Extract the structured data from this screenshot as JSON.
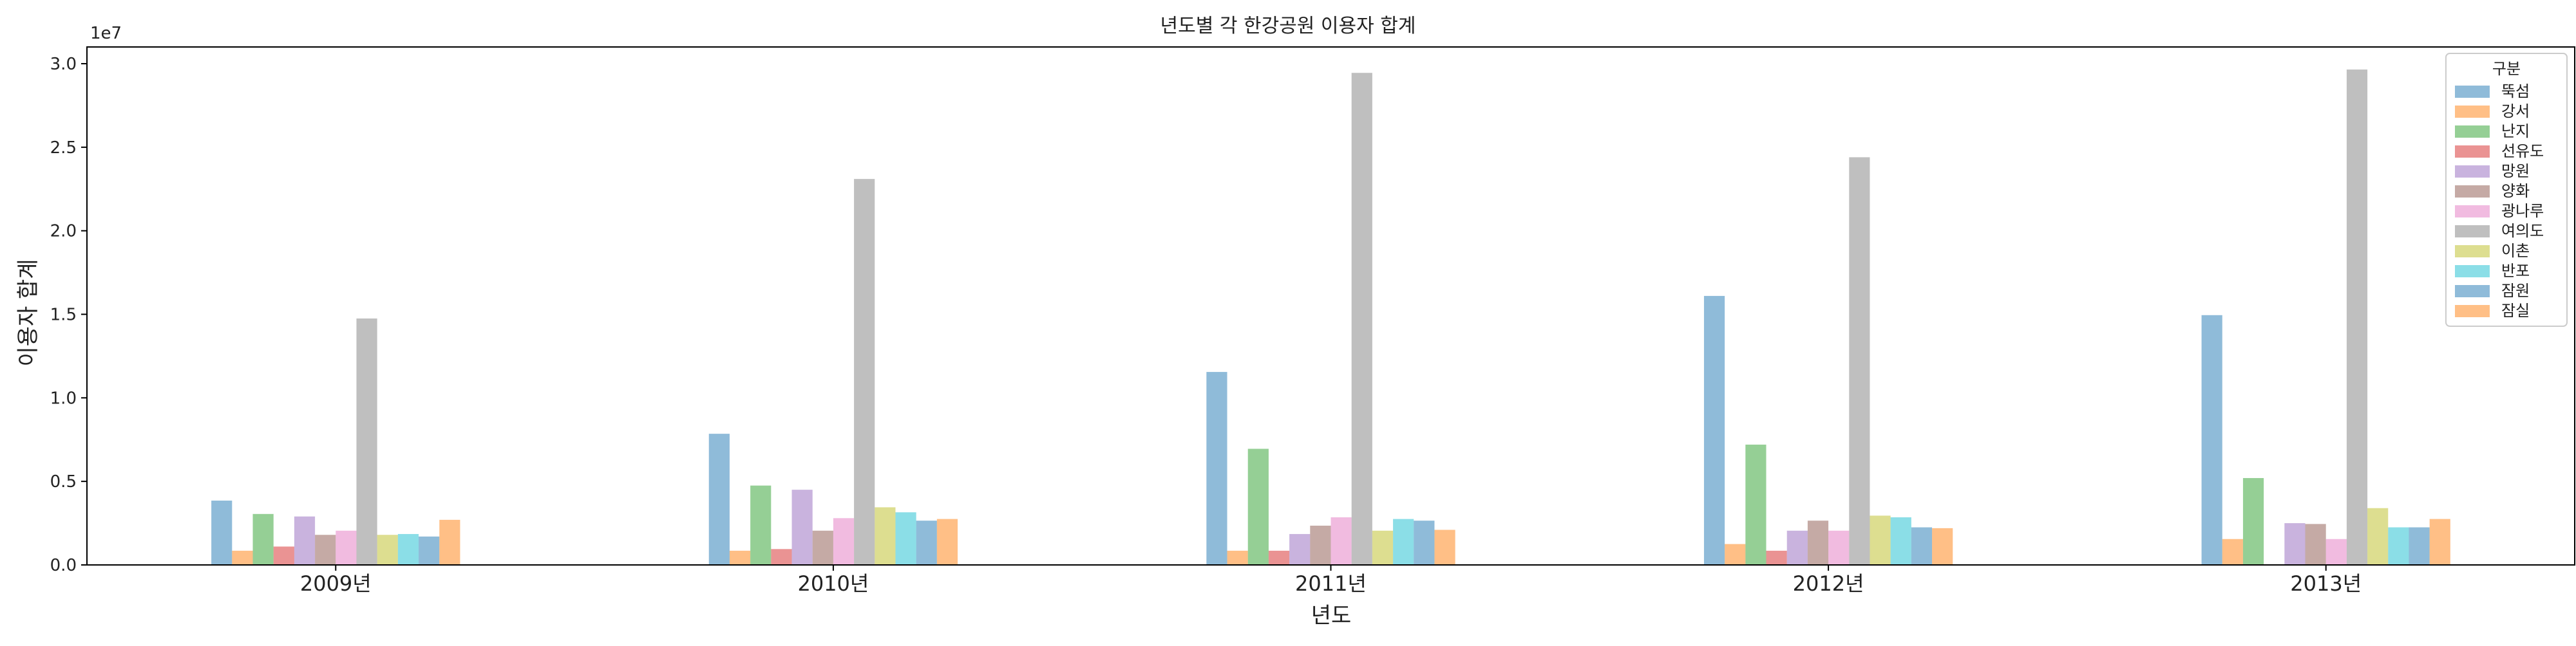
{
  "chart_data": {
    "type": "bar",
    "title": "년도별 각 한강공원 이용자 합계",
    "xlabel": "년도",
    "ylabel": "이용자 합계",
    "y_exponent_label": "1e7",
    "ylim": [
      0,
      31000000
    ],
    "yticks": [
      0,
      5000000,
      10000000,
      15000000,
      20000000,
      25000000,
      30000000
    ],
    "ytick_labels": [
      "0.0",
      "0.5",
      "1.0",
      "1.5",
      "2.0",
      "2.5",
      "3.0"
    ],
    "grid": false,
    "legend": {
      "title": "구분",
      "position": "top-right"
    },
    "categories": [
      "2009년",
      "2010년",
      "2011년",
      "2012년",
      "2013년"
    ],
    "series": [
      {
        "name": "뚝섬",
        "color": "#1f77b4",
        "values": [
          3850000,
          7850000,
          11550000,
          16100000,
          14950000
        ]
      },
      {
        "name": "강서",
        "color": "#ff7f0e",
        "values": [
          850000,
          850000,
          850000,
          1250000,
          1550000
        ]
      },
      {
        "name": "난지",
        "color": "#2ca02c",
        "values": [
          3050000,
          4750000,
          6950000,
          7200000,
          5200000
        ]
      },
      {
        "name": "선유도",
        "color": "#d62728",
        "values": [
          1100000,
          950000,
          850000,
          850000,
          0
        ]
      },
      {
        "name": "망원",
        "color": "#9467bd",
        "values": [
          2900000,
          4500000,
          1850000,
          2050000,
          2500000
        ]
      },
      {
        "name": "양화",
        "color": "#8c564b",
        "values": [
          1800000,
          2050000,
          2350000,
          2650000,
          2450000
        ]
      },
      {
        "name": "광나루",
        "color": "#e377c2",
        "values": [
          2050000,
          2800000,
          2850000,
          2050000,
          1550000
        ]
      },
      {
        "name": "여의도",
        "color": "#7f7f7f",
        "values": [
          14750000,
          23100000,
          29450000,
          24400000,
          29650000
        ]
      },
      {
        "name": "이촌",
        "color": "#bcbd22",
        "values": [
          1800000,
          3450000,
          2050000,
          2950000,
          3400000
        ]
      },
      {
        "name": "반포",
        "color": "#17becf",
        "values": [
          1850000,
          3150000,
          2750000,
          2850000,
          2250000
        ]
      },
      {
        "name": "잠원",
        "color": "#1f77b4",
        "values": [
          1700000,
          2650000,
          2650000,
          2250000,
          2250000
        ]
      },
      {
        "name": "잠실",
        "color": "#ff7f0e",
        "values": [
          2700000,
          2750000,
          2100000,
          2200000,
          2750000
        ]
      }
    ]
  }
}
